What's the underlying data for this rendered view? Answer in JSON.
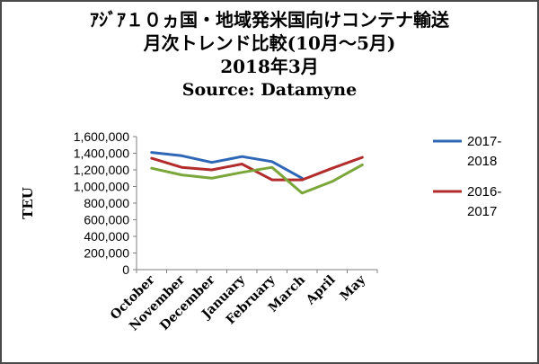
{
  "chart_data": {
    "type": "line",
    "title_lines": [
      "ｱｼﾞｱ１０ヵ国・地域発米国向けコンテナ輸送",
      "月次トレンド比較(10月～5月)",
      "2018年3月",
      "Source: Datamyne"
    ],
    "ylabel": "TEU",
    "xlabel": "",
    "categories": [
      "October",
      "November",
      "December",
      "January",
      "February",
      "March",
      "April",
      "May"
    ],
    "ylim": [
      0,
      1600000
    ],
    "yticks": [
      "0",
      "200,000",
      "400,000",
      "600,000",
      "800,000",
      "1,000,000",
      "1,200,000",
      "1,400,000",
      "1,600,000"
    ],
    "series": [
      {
        "name": "2017-2018",
        "name_lines": [
          "2017-",
          "2018"
        ],
        "color": "#2e67b5",
        "values": [
          1410000,
          1370000,
          1290000,
          1360000,
          1300000,
          1100000,
          null,
          null
        ]
      },
      {
        "name": "2016-2017",
        "name_lines": [
          "2016-",
          "2017"
        ],
        "color": "#b22c2c",
        "values": [
          1340000,
          1230000,
          1200000,
          1270000,
          1080000,
          1080000,
          1220000,
          1350000
        ]
      },
      {
        "name": "",
        "name_lines": [],
        "color": "#7aa63a",
        "values": [
          1220000,
          1140000,
          1100000,
          1170000,
          1230000,
          920000,
          1060000,
          1260000
        ]
      }
    ],
    "grid": false,
    "legend": "right"
  }
}
